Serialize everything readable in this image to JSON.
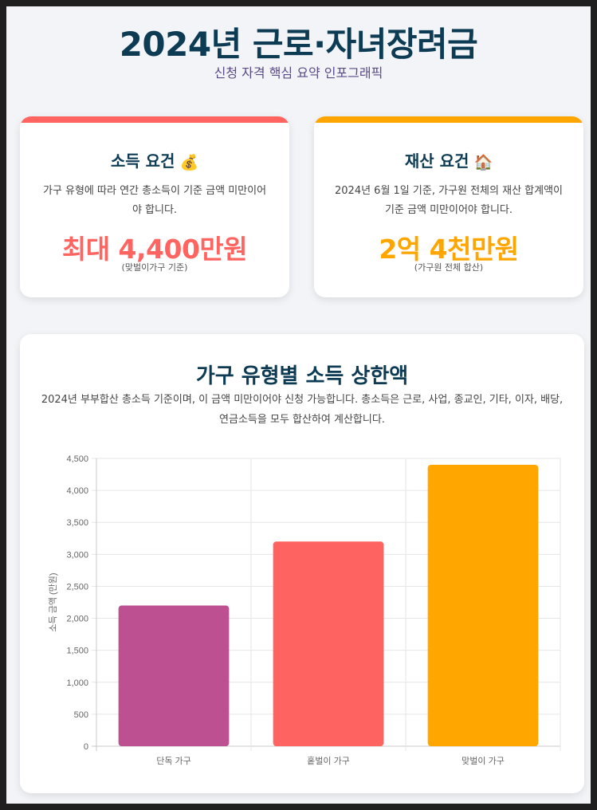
{
  "header": {
    "title": "2024년 근로·자녀장려금",
    "subtitle": "신청 자격 핵심 요약 인포그래픽"
  },
  "income_card": {
    "heading": "소득 요건",
    "emoji": "💰",
    "description": "가구 유형에 따라 연간 총소득이 기준 금액 미만이어야 합니다.",
    "amount": "최대 4,400만원",
    "note": "(맞벌이가구 기준)",
    "accent": "#ff6461"
  },
  "asset_card": {
    "heading": "재산 요건",
    "emoji": "🏠",
    "description": "2024년 6월 1일 기준, 가구원 전체의 재산 합계액이 기준 금액 미만이어야 합니다.",
    "amount": "2억 4천만원",
    "note": "(가구원 전체 합산)",
    "accent": "#ffa500"
  },
  "chart_section": {
    "heading": "가구 유형별 소득 상한액",
    "description": "2024년 부부합산 총소득 기준이며, 이 금액 미만이어야 신청 가능합니다. 총소득은 근로, 사업, 종교인, 기타, 이자, 배당, 연금소득을 모두 합산하여 계산합니다."
  },
  "chart_data": {
    "type": "bar",
    "categories": [
      "단독 가구",
      "홑벌이 가구",
      "맞벌이 가구"
    ],
    "values": [
      2200,
      3200,
      4400
    ],
    "colors": [
      "#bc5090",
      "#ff6361",
      "#ffa600"
    ],
    "ylabel": "소득 금액 (만원)",
    "xlabel": "",
    "ylim": [
      0,
      4500
    ],
    "yticks": [
      0,
      500,
      1000,
      1500,
      2000,
      2500,
      3000,
      3500,
      4000,
      4500
    ],
    "ytick_labels": [
      "0",
      "500",
      "1,000",
      "1,500",
      "2,000",
      "2,500",
      "3,000",
      "3,500",
      "4,000",
      "4,500"
    ],
    "grid": true,
    "legend": "none"
  }
}
